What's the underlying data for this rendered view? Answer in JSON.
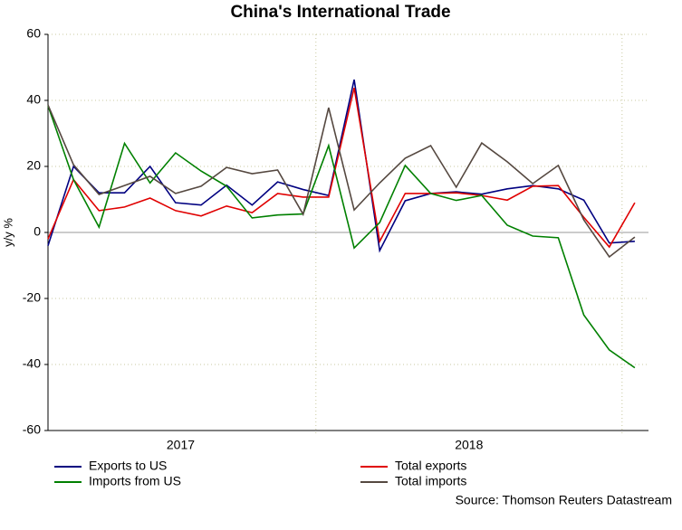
{
  "chart_data": {
    "type": "line",
    "title": "China's International Trade",
    "y_label": "y/y %",
    "source": "Source: Thomson Reuters Datastream",
    "categories": [
      null,
      null,
      null,
      null,
      null,
      null,
      null,
      null,
      null,
      null,
      null,
      null,
      null,
      null,
      null,
      null,
      null,
      null,
      null,
      null,
      null,
      null,
      null,
      null
    ],
    "xticks": [
      "2017",
      "2018"
    ],
    "ylim": [
      -60,
      60
    ],
    "yticks": [
      -60,
      -40,
      -20,
      0,
      20,
      40,
      60
    ],
    "grid": true,
    "legend": "bottom",
    "series": [
      {
        "name": "Exports to US",
        "color": "#000080",
        "values": [
          -4,
          20,
          12,
          12,
          20,
          9,
          8.3,
          14.3,
          8.3,
          15.3,
          13,
          11.2,
          46.3,
          -5.5,
          9.6,
          11.8,
          12.3,
          11.6,
          13.2,
          14.2,
          13.2,
          9.8,
          -3.2,
          -2.7
        ]
      },
      {
        "name": "Total exports",
        "color": "#e00000",
        "values": [
          -2,
          16,
          6.6,
          7.7,
          10.4,
          6.6,
          5,
          8,
          6,
          11.8,
          10.7,
          10.7,
          43.8,
          -2.7,
          11.8,
          11.8,
          12,
          11.2,
          9.8,
          14,
          14.2,
          4.6,
          -4.4,
          9
        ]
      },
      {
        "name": "Imports from US",
        "color": "#008000",
        "values": [
          38.4,
          16,
          1.6,
          27,
          15,
          24.1,
          18.6,
          14,
          4.4,
          5.3,
          5.6,
          26.3,
          -4.7,
          3,
          20.3,
          11.8,
          9.7,
          11.2,
          2.2,
          -1.1,
          -1.6,
          -25,
          -35.6,
          -41
        ]
      },
      {
        "name": "Total imports",
        "color": "#554840",
        "values": [
          38.6,
          20.5,
          11.5,
          14.2,
          17,
          11.8,
          14,
          19.7,
          17.8,
          18.9,
          5.5,
          37.8,
          6.8,
          15,
          22.5,
          26.3,
          13.7,
          27.1,
          21.4,
          14.8,
          20.3,
          3.8,
          -7.4,
          -1.4
        ]
      }
    ]
  }
}
